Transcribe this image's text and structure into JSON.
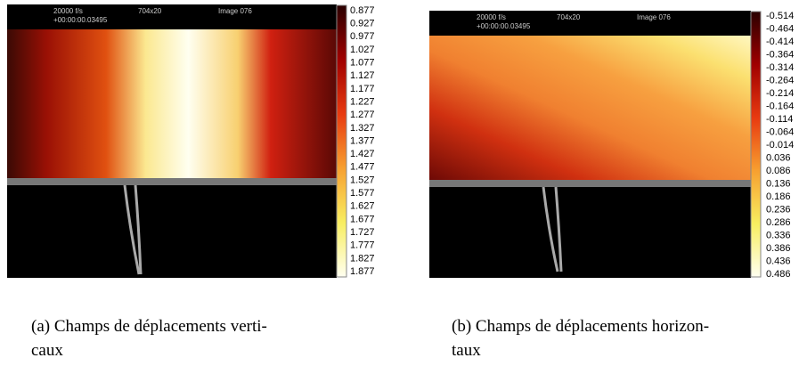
{
  "panels": [
    {
      "overlay": {
        "rate": "20000 f/s",
        "time": "+00:00:00.03495",
        "size": "704x20",
        "frame": "Image 076"
      },
      "colorbar": [
        "0.877",
        "0.927",
        "0.977",
        "1.027",
        "1.077",
        "1.127",
        "1.177",
        "1.227",
        "1.277",
        "1.327",
        "1.377",
        "1.427",
        "1.477",
        "1.527",
        "1.577",
        "1.627",
        "1.677",
        "1.727",
        "1.777",
        "1.827",
        "1.877"
      ],
      "caption": {
        "line1": "(a) Champs de déplacements verti-",
        "line2": "caux"
      }
    },
    {
      "overlay": {
        "rate": "20000 f/s",
        "time": "+00:00:00.03495",
        "size": "704x20",
        "frame": "Image 076"
      },
      "colorbar": [
        "-0.514",
        "-0.464",
        "-0.414",
        "-0.364",
        "-0.314",
        "-0.264",
        "-0.214",
        "-0.164",
        "-0.114",
        "-0.064",
        "-0.014",
        "0.036",
        "0.086",
        "0.136",
        "0.186",
        "0.236",
        "0.286",
        "0.336",
        "0.386",
        "0.436",
        "0.486"
      ],
      "caption": {
        "line1": "(b) Champs de déplacements horizon-",
        "line2": "taux"
      }
    }
  ]
}
